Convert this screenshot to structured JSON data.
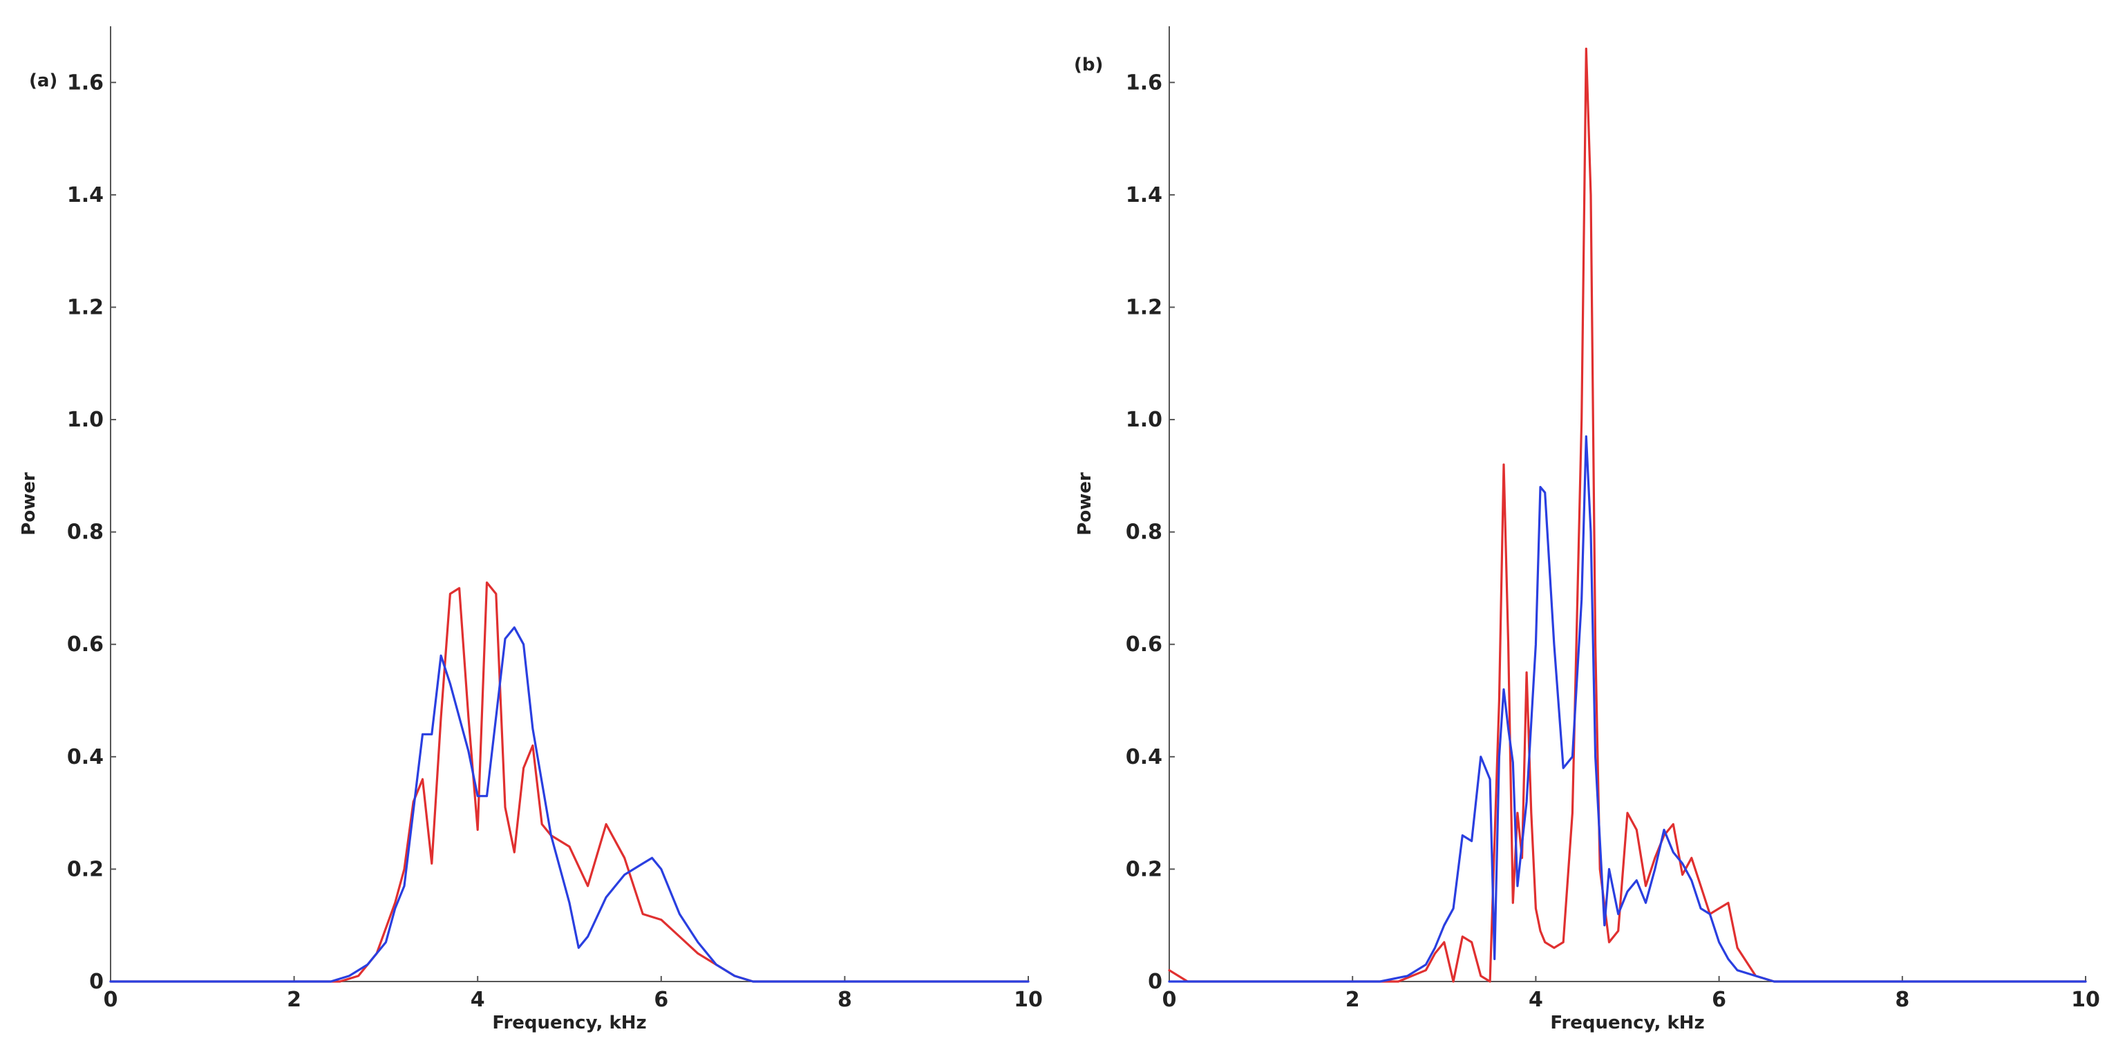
{
  "chart_data": [
    {
      "type": "line",
      "panel_label": "(a)",
      "title": "",
      "xlabel": "Frequency, kHz",
      "ylabel": "Power",
      "xlim": [
        0,
        10
      ],
      "ylim": [
        0,
        1.7
      ],
      "xticks": [
        0,
        2,
        4,
        6,
        8,
        10
      ],
      "xtick_labels": [
        "0",
        "2",
        "4",
        "6",
        "8",
        "10"
      ],
      "yticks": [
        0,
        0.2,
        0.4,
        0.6,
        0.8,
        1.0,
        1.2,
        1.4,
        1.6
      ],
      "ytick_labels": [
        "0",
        "0.2",
        "0.4",
        "0.6",
        "0.8",
        "1.0",
        "1.2",
        "1.4",
        "1.6"
      ],
      "series": [
        {
          "name": "red",
          "color": "#e03030",
          "x": [
            0,
            2.5,
            2.7,
            2.9,
            3.1,
            3.2,
            3.3,
            3.4,
            3.5,
            3.6,
            3.7,
            3.8,
            3.9,
            4.0,
            4.1,
            4.2,
            4.3,
            4.4,
            4.5,
            4.6,
            4.7,
            4.8,
            5.0,
            5.2,
            5.4,
            5.6,
            5.8,
            6.0,
            6.2,
            6.4,
            6.6,
            6.8,
            7.0,
            7.2,
            10
          ],
          "y": [
            0,
            0,
            0.01,
            0.05,
            0.14,
            0.2,
            0.32,
            0.36,
            0.21,
            0.47,
            0.69,
            0.7,
            0.47,
            0.27,
            0.71,
            0.69,
            0.31,
            0.23,
            0.38,
            0.42,
            0.28,
            0.26,
            0.24,
            0.17,
            0.28,
            0.22,
            0.12,
            0.11,
            0.08,
            0.05,
            0.03,
            0.01,
            0.0,
            0.0,
            0
          ]
        },
        {
          "name": "blue",
          "color": "#2a3fe0",
          "x": [
            0,
            2.4,
            2.6,
            2.8,
            3.0,
            3.1,
            3.2,
            3.4,
            3.5,
            3.6,
            3.7,
            3.9,
            4.0,
            4.1,
            4.3,
            4.4,
            4.5,
            4.6,
            4.8,
            5.0,
            5.1,
            5.2,
            5.4,
            5.6,
            5.8,
            5.9,
            6.0,
            6.2,
            6.4,
            6.6,
            6.8,
            7.0,
            10
          ],
          "y": [
            0,
            0,
            0.01,
            0.03,
            0.07,
            0.13,
            0.17,
            0.44,
            0.44,
            0.58,
            0.53,
            0.41,
            0.33,
            0.33,
            0.61,
            0.63,
            0.6,
            0.45,
            0.26,
            0.14,
            0.06,
            0.08,
            0.15,
            0.19,
            0.21,
            0.22,
            0.2,
            0.12,
            0.07,
            0.03,
            0.01,
            0.0,
            0
          ]
        }
      ]
    },
    {
      "type": "line",
      "panel_label": "(b)",
      "title": "",
      "xlabel": "Frequency, kHz",
      "ylabel": "Power",
      "xlim": [
        0,
        10
      ],
      "ylim": [
        0,
        1.7
      ],
      "xticks": [
        0,
        2,
        4,
        6,
        8,
        10
      ],
      "xtick_labels": [
        "0",
        "2",
        "4",
        "6",
        "8",
        "10"
      ],
      "yticks": [
        0,
        0.2,
        0.4,
        0.6,
        0.8,
        1.0,
        1.2,
        1.4,
        1.6
      ],
      "ytick_labels": [
        "0",
        "0.2",
        "0.4",
        "0.6",
        "0.8",
        "1.0",
        "1.2",
        "1.4",
        "1.6"
      ],
      "series": [
        {
          "name": "red",
          "color": "#e03030",
          "x": [
            0,
            0.1,
            0.2,
            0.3,
            2.5,
            2.8,
            2.9,
            3.0,
            3.1,
            3.2,
            3.3,
            3.4,
            3.5,
            3.6,
            3.65,
            3.7,
            3.75,
            3.8,
            3.85,
            3.9,
            3.95,
            4.0,
            4.05,
            4.1,
            4.2,
            4.3,
            4.4,
            4.5,
            4.55,
            4.6,
            4.65,
            4.7,
            4.8,
            4.9,
            5.0,
            5.1,
            5.2,
            5.3,
            5.4,
            5.5,
            5.6,
            5.7,
            5.8,
            5.9,
            6.0,
            6.1,
            6.2,
            6.4,
            6.6,
            6.8,
            7.0,
            10
          ],
          "y": [
            0.02,
            0.01,
            0.0,
            0.0,
            0.0,
            0.02,
            0.05,
            0.07,
            0.0,
            0.08,
            0.07,
            0.01,
            0.0,
            0.5,
            0.92,
            0.6,
            0.14,
            0.3,
            0.22,
            0.55,
            0.3,
            0.13,
            0.09,
            0.07,
            0.06,
            0.07,
            0.3,
            1.0,
            1.66,
            1.4,
            0.6,
            0.2,
            0.07,
            0.09,
            0.3,
            0.27,
            0.17,
            0.22,
            0.26,
            0.28,
            0.19,
            0.22,
            0.17,
            0.12,
            0.13,
            0.14,
            0.06,
            0.01,
            0.0,
            0.0,
            0.0,
            0
          ]
        },
        {
          "name": "blue",
          "color": "#2a3fe0",
          "x": [
            0,
            0.1,
            0.3,
            2.3,
            2.6,
            2.8,
            2.9,
            3.0,
            3.1,
            3.2,
            3.3,
            3.4,
            3.5,
            3.55,
            3.6,
            3.65,
            3.7,
            3.75,
            3.8,
            3.9,
            4.0,
            4.05,
            4.1,
            4.2,
            4.3,
            4.4,
            4.5,
            4.55,
            4.6,
            4.65,
            4.7,
            4.75,
            4.8,
            4.9,
            5.0,
            5.1,
            5.2,
            5.3,
            5.4,
            5.5,
            5.6,
            5.7,
            5.8,
            5.9,
            6.0,
            6.1,
            6.2,
            6.4,
            6.6,
            6.8,
            7.0,
            10
          ],
          "y": [
            0.0,
            0.0,
            0.0,
            0.0,
            0.01,
            0.03,
            0.06,
            0.1,
            0.13,
            0.26,
            0.25,
            0.4,
            0.36,
            0.04,
            0.4,
            0.52,
            0.45,
            0.39,
            0.17,
            0.32,
            0.6,
            0.88,
            0.87,
            0.6,
            0.38,
            0.4,
            0.68,
            0.97,
            0.8,
            0.4,
            0.25,
            0.1,
            0.2,
            0.12,
            0.16,
            0.18,
            0.14,
            0.2,
            0.27,
            0.23,
            0.21,
            0.18,
            0.13,
            0.12,
            0.07,
            0.04,
            0.02,
            0.01,
            0.0,
            0.0,
            0.0,
            0
          ]
        }
      ]
    }
  ]
}
